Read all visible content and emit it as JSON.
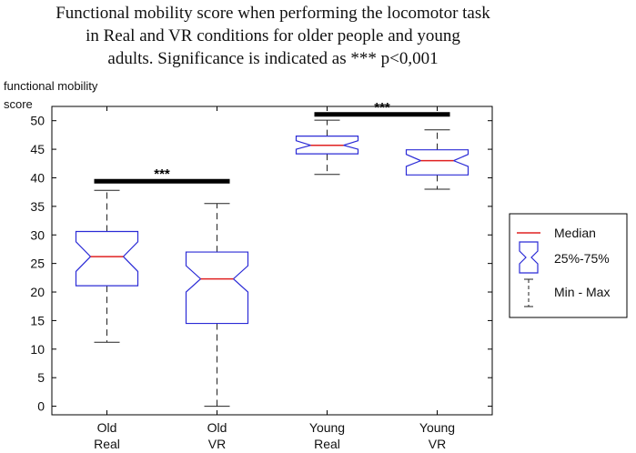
{
  "chart_data": {
    "type": "boxplot",
    "title_lines": [
      "Functional mobility score when performing the locomotor task",
      "in Real and VR conditions for older people and young",
      "adults. Significance is indicated as *** p<0,001"
    ],
    "ylabel_lines": [
      "functional mobility",
      "score"
    ],
    "ylim": [
      -1.5,
      52.5
    ],
    "yticks": [
      0,
      5,
      10,
      15,
      20,
      25,
      30,
      35,
      40,
      45,
      50
    ],
    "categories": [
      {
        "line1": "Old",
        "line2": "Real"
      },
      {
        "line1": "Old",
        "line2": "VR"
      },
      {
        "line1": "Young",
        "line2": "Real"
      },
      {
        "line1": "Young",
        "line2": "VR"
      }
    ],
    "boxes": [
      {
        "min": 11.2,
        "q1": 21.1,
        "median": 26.2,
        "q3": 30.6,
        "max": 37.8,
        "notch_low": 23.6,
        "notch_high": 28.8
      },
      {
        "min": 0.0,
        "q1": 14.5,
        "median": 22.3,
        "q3": 27.0,
        "max": 35.5,
        "notch_low": 20.0,
        "notch_high": 24.6
      },
      {
        "min": 40.6,
        "q1": 44.2,
        "median": 45.7,
        "q3": 47.3,
        "max": 50.1,
        "notch_low": 45.0,
        "notch_high": 46.5
      },
      {
        "min": 38.0,
        "q1": 40.5,
        "median": 43.0,
        "q3": 44.9,
        "max": 48.4,
        "notch_low": 42.0,
        "notch_high": 44.1
      }
    ],
    "significance": [
      {
        "from": 0,
        "to": 1,
        "y": 39.4,
        "label": "***"
      },
      {
        "from": 2,
        "to": 3,
        "y": 51.1,
        "label": "***"
      }
    ],
    "colors": {
      "box": "#2b2bd6",
      "median": "#e02020",
      "whisker": "#222222",
      "bar": "#000000"
    },
    "legend": {
      "placement": "right",
      "items": [
        {
          "kind": "median",
          "label": "Median"
        },
        {
          "kind": "box",
          "label": "25%-75%"
        },
        {
          "kind": "whisker",
          "label": "Min - Max"
        }
      ]
    }
  }
}
